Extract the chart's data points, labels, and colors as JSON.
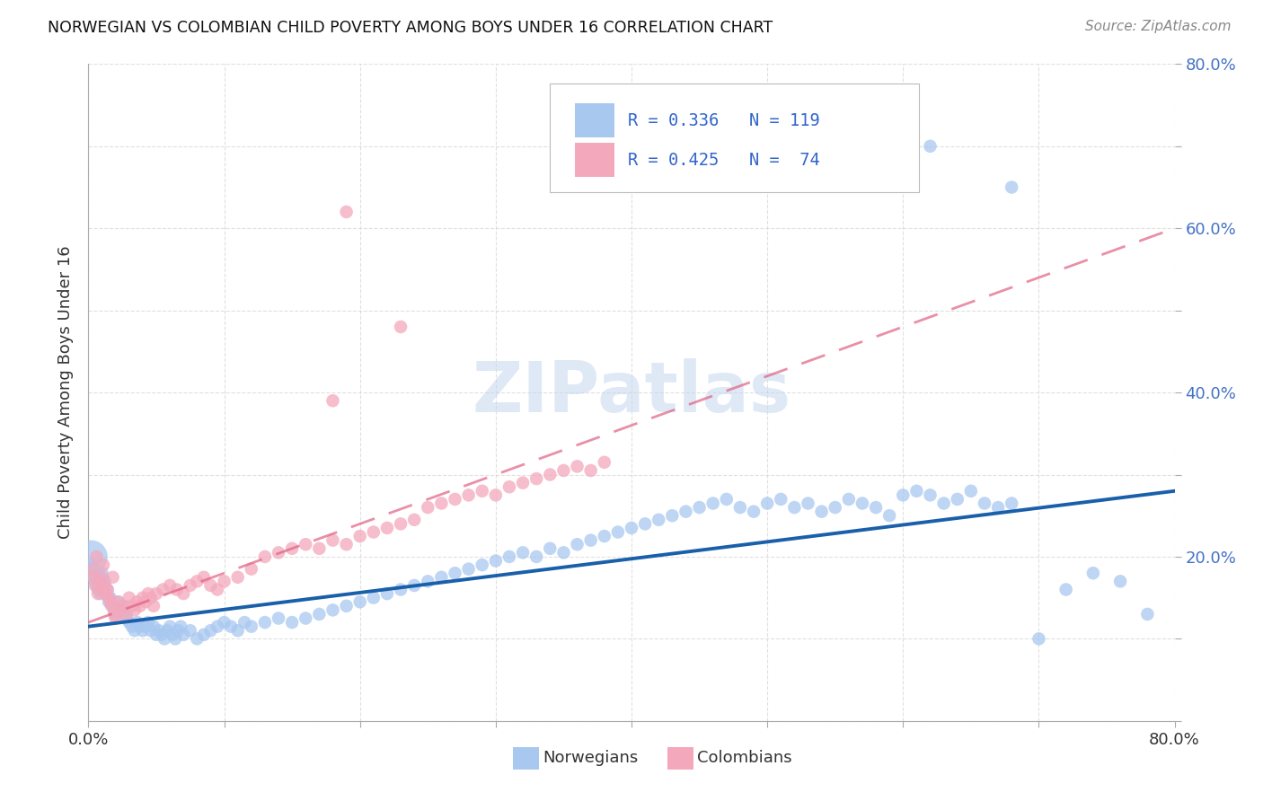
{
  "title": "NORWEGIAN VS COLOMBIAN CHILD POVERTY AMONG BOYS UNDER 16 CORRELATION CHART",
  "source": "Source: ZipAtlas.com",
  "ylabel": "Child Poverty Among Boys Under 16",
  "xlim": [
    0.0,
    0.8
  ],
  "ylim": [
    0.0,
    0.8
  ],
  "norwegian_R": 0.336,
  "norwegian_N": 119,
  "colombian_R": 0.425,
  "colombian_N": 74,
  "norwegian_color": "#a8c8f0",
  "colombian_color": "#f4a8bc",
  "norwegian_line_color": "#1a5faa",
  "colombian_line_color": "#e06080",
  "watermark": "ZIPatlas",
  "background_color": "#ffffff",
  "grid_color": "#cccccc",
  "ytick_labels": [
    "",
    "",
    "20.0%",
    "",
    "40.0%",
    "",
    "60.0%",
    "",
    "80.0%"
  ],
  "ytick_color": "#4472c4",
  "title_color": "#111111",
  "source_color": "#888888",
  "label_color": "#333333",
  "norwegians_x": [
    0.002,
    0.002,
    0.003,
    0.004,
    0.005,
    0.006,
    0.007,
    0.008,
    0.009,
    0.01,
    0.011,
    0.012,
    0.013,
    0.014,
    0.015,
    0.016,
    0.017,
    0.018,
    0.019,
    0.02,
    0.022,
    0.023,
    0.025,
    0.026,
    0.028,
    0.03,
    0.032,
    0.034,
    0.036,
    0.038,
    0.04,
    0.042,
    0.044,
    0.046,
    0.048,
    0.05,
    0.052,
    0.054,
    0.056,
    0.058,
    0.06,
    0.062,
    0.064,
    0.066,
    0.068,
    0.07,
    0.075,
    0.08,
    0.085,
    0.09,
    0.095,
    0.1,
    0.105,
    0.11,
    0.115,
    0.12,
    0.13,
    0.14,
    0.15,
    0.16,
    0.17,
    0.18,
    0.19,
    0.2,
    0.21,
    0.22,
    0.23,
    0.24,
    0.25,
    0.26,
    0.27,
    0.28,
    0.29,
    0.3,
    0.31,
    0.32,
    0.33,
    0.34,
    0.35,
    0.36,
    0.37,
    0.38,
    0.39,
    0.4,
    0.41,
    0.42,
    0.43,
    0.44,
    0.45,
    0.46,
    0.47,
    0.48,
    0.49,
    0.5,
    0.51,
    0.52,
    0.53,
    0.54,
    0.55,
    0.56,
    0.57,
    0.58,
    0.59,
    0.6,
    0.61,
    0.62,
    0.63,
    0.64,
    0.65,
    0.66,
    0.67,
    0.68,
    0.7,
    0.72,
    0.74,
    0.76,
    0.78,
    0.62,
    0.68
  ],
  "norwegians_y": [
    0.2,
    0.19,
    0.185,
    0.175,
    0.17,
    0.165,
    0.16,
    0.175,
    0.155,
    0.18,
    0.165,
    0.17,
    0.155,
    0.16,
    0.145,
    0.15,
    0.145,
    0.14,
    0.135,
    0.13,
    0.145,
    0.135,
    0.14,
    0.13,
    0.125,
    0.12,
    0.115,
    0.11,
    0.12,
    0.115,
    0.11,
    0.115,
    0.12,
    0.11,
    0.115,
    0.105,
    0.11,
    0.105,
    0.1,
    0.11,
    0.115,
    0.105,
    0.1,
    0.11,
    0.115,
    0.105,
    0.11,
    0.1,
    0.105,
    0.11,
    0.115,
    0.12,
    0.115,
    0.11,
    0.12,
    0.115,
    0.12,
    0.125,
    0.12,
    0.125,
    0.13,
    0.135,
    0.14,
    0.145,
    0.15,
    0.155,
    0.16,
    0.165,
    0.17,
    0.175,
    0.18,
    0.185,
    0.19,
    0.195,
    0.2,
    0.205,
    0.2,
    0.21,
    0.205,
    0.215,
    0.22,
    0.225,
    0.23,
    0.235,
    0.24,
    0.245,
    0.25,
    0.255,
    0.26,
    0.265,
    0.27,
    0.26,
    0.255,
    0.265,
    0.27,
    0.26,
    0.265,
    0.255,
    0.26,
    0.27,
    0.265,
    0.26,
    0.25,
    0.275,
    0.28,
    0.275,
    0.265,
    0.27,
    0.28,
    0.265,
    0.26,
    0.265,
    0.1,
    0.16,
    0.18,
    0.17,
    0.13,
    0.7,
    0.65
  ],
  "colombians_x": [
    0.003,
    0.004,
    0.005,
    0.006,
    0.007,
    0.008,
    0.009,
    0.01,
    0.011,
    0.012,
    0.013,
    0.014,
    0.015,
    0.016,
    0.017,
    0.018,
    0.019,
    0.02,
    0.022,
    0.024,
    0.026,
    0.028,
    0.03,
    0.032,
    0.034,
    0.036,
    0.038,
    0.04,
    0.042,
    0.044,
    0.046,
    0.048,
    0.05,
    0.055,
    0.06,
    0.065,
    0.07,
    0.075,
    0.08,
    0.085,
    0.09,
    0.095,
    0.1,
    0.11,
    0.12,
    0.13,
    0.14,
    0.15,
    0.16,
    0.17,
    0.18,
    0.19,
    0.2,
    0.21,
    0.22,
    0.23,
    0.24,
    0.25,
    0.26,
    0.27,
    0.28,
    0.29,
    0.3,
    0.31,
    0.32,
    0.33,
    0.34,
    0.35,
    0.36,
    0.37,
    0.38,
    0.19,
    0.23,
    0.18
  ],
  "colombians_y": [
    0.185,
    0.175,
    0.165,
    0.2,
    0.155,
    0.17,
    0.16,
    0.175,
    0.19,
    0.165,
    0.155,
    0.16,
    0.15,
    0.145,
    0.14,
    0.175,
    0.13,
    0.125,
    0.145,
    0.135,
    0.14,
    0.13,
    0.15,
    0.14,
    0.135,
    0.145,
    0.14,
    0.15,
    0.145,
    0.155,
    0.15,
    0.14,
    0.155,
    0.16,
    0.165,
    0.16,
    0.155,
    0.165,
    0.17,
    0.175,
    0.165,
    0.16,
    0.17,
    0.175,
    0.185,
    0.2,
    0.205,
    0.21,
    0.215,
    0.21,
    0.22,
    0.215,
    0.225,
    0.23,
    0.235,
    0.24,
    0.245,
    0.26,
    0.265,
    0.27,
    0.275,
    0.28,
    0.275,
    0.285,
    0.29,
    0.295,
    0.3,
    0.305,
    0.31,
    0.305,
    0.315,
    0.62,
    0.48,
    0.39
  ]
}
